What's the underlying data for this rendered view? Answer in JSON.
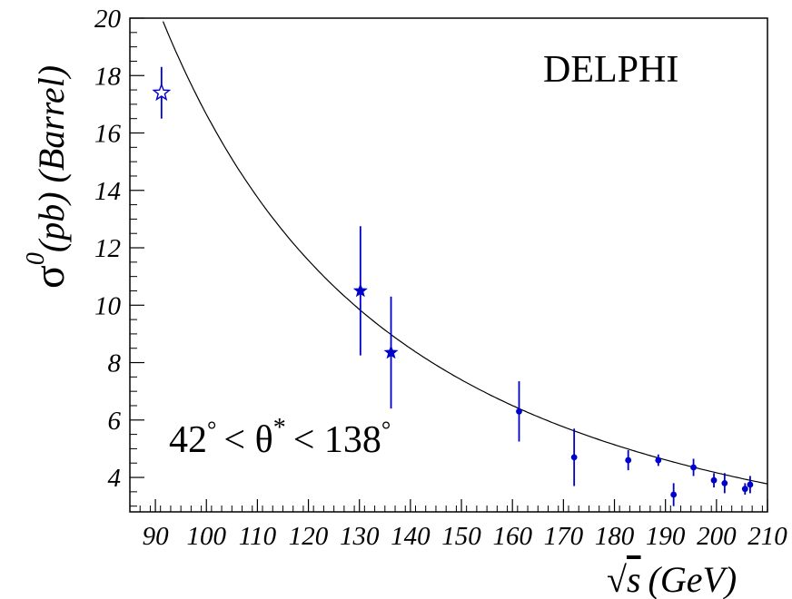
{
  "chart_data": {
    "type": "scatter",
    "xlabel_radical": "√",
    "xlabel_var": "s",
    "xlabel_unit": "(GeV)",
    "ylabel_symbol": "σ",
    "ylabel_sup": "0",
    "ylabel_rest": "(pb) (Barrel)",
    "xlim": [
      85,
      210
    ],
    "ylim": [
      2.8,
      20
    ],
    "xticks": [
      90,
      100,
      110,
      120,
      130,
      140,
      150,
      160,
      170,
      180,
      190,
      200,
      210
    ],
    "xtick_labels": [
      "90",
      "100",
      "110",
      "120",
      "130",
      "140",
      "150",
      "160",
      "170",
      "180",
      "190",
      "200",
      "210"
    ],
    "yticks": [
      4,
      6,
      8,
      10,
      12,
      14,
      16,
      18,
      20
    ],
    "ytick_labels": [
      "4",
      "6",
      "8",
      "10",
      "12",
      "14",
      "16",
      "18",
      "20"
    ],
    "annotations": {
      "experiment": "DELPHI",
      "cut_a": "42",
      "cut_b": "< θ",
      "cut_c": "< 138"
    },
    "series": [
      {
        "marker": "open-star",
        "color": "#0000cc",
        "points": [
          {
            "x": 91.2,
            "y": 17.4,
            "err": 0.9
          }
        ]
      },
      {
        "marker": "filled-star",
        "color": "#0000cc",
        "points": [
          {
            "x": 130.2,
            "y": 10.5,
            "err": 2.25
          },
          {
            "x": 136.2,
            "y": 8.35,
            "err": 1.95
          }
        ]
      },
      {
        "marker": "dot",
        "color": "#0000cc",
        "points": [
          {
            "x": 161.3,
            "y": 6.3,
            "err": 1.05
          },
          {
            "x": 172.1,
            "y": 4.7,
            "err": 1.0
          },
          {
            "x": 182.7,
            "y": 4.6,
            "err": 0.35
          },
          {
            "x": 188.6,
            "y": 4.6,
            "err": 0.2
          },
          {
            "x": 191.6,
            "y": 3.4,
            "err": 0.4
          },
          {
            "x": 195.5,
            "y": 4.35,
            "err": 0.3
          },
          {
            "x": 199.5,
            "y": 3.9,
            "err": 0.25
          },
          {
            "x": 201.6,
            "y": 3.8,
            "err": 0.35
          },
          {
            "x": 205.6,
            "y": 3.6,
            "err": 0.2
          },
          {
            "x": 206.6,
            "y": 3.75,
            "err": 0.3
          }
        ]
      }
    ],
    "fit_curve": {
      "form": "A/s",
      "A": 166500
    }
  }
}
